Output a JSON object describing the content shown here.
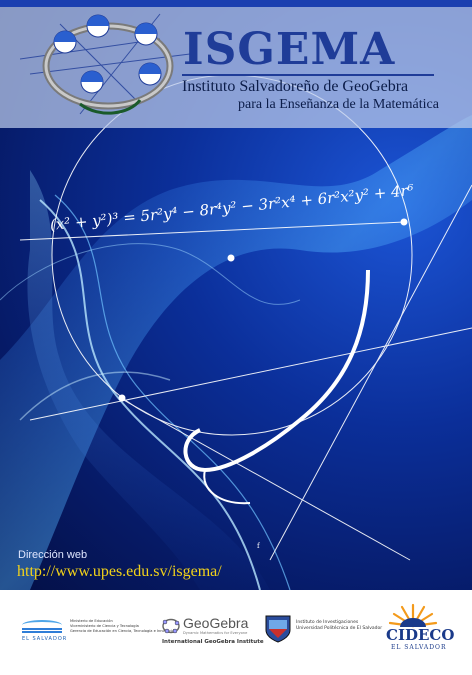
{
  "header": {
    "title": "ISGEMA",
    "subtitle1": "Instituto Salvadoreño de GeoGebra",
    "subtitle2": "para la Enseñanza de la Matemática"
  },
  "equation": "(x² + y²)³ = 5r²y⁴ − 8r⁴y² − 3r²x⁴ + 6r²x²y² + 4r⁶",
  "graph_label": "f",
  "web": {
    "label": "Dirección web",
    "url": "http://www.upes.edu.sv/isgema/"
  },
  "footer": {
    "mined": {
      "name": "EL SALVADOR",
      "lines": [
        "Ministerio de Educación",
        "Viceministerio de Ciencia y Tecnología",
        "Gerencia de Educación en Ciencia, Tecnología e Innovación"
      ]
    },
    "geogebra": {
      "name": "GeoGebra",
      "tagline": "Dynamic Mathematics for Everyone",
      "institute": "International GeoGebra Institute"
    },
    "upes": {
      "lines": [
        "Instituto de Investigaciones",
        "Universidad Politécnica de El Salvador"
      ]
    },
    "cideco": {
      "name": "CIDECO",
      "sub": "EL SALVADOR"
    }
  },
  "colors": {
    "brand_blue": "#1f3c98",
    "url_yellow": "#f2d21a",
    "background_blue": "#0b2f9a"
  }
}
